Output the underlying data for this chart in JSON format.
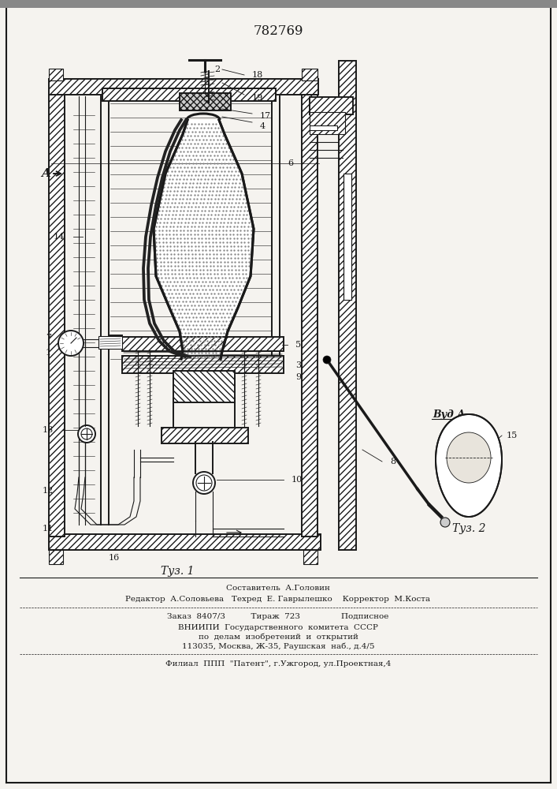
{
  "patent_number": "782769",
  "fig1_label": "Τуз. 1",
  "fig2_label": "Τуз. 2",
  "vid_a_label": "Вуд А",
  "label_A": "A",
  "bg_color": "#f5f3ef",
  "line_color": "#1a1a1a",
  "footer_line1": "Составитель  А.Головин",
  "footer_line2": "Редактор  А.Соловьева   Техред  Е. Гаврылешко    Корректор  М.Коста",
  "footer_line3": "Заказ  8407/3          Тираж  723                Подписное",
  "footer_line4": "ВНИИПИ  Государственного  комитета  СССР",
  "footer_line5": "по  делам  изобретений  и  открытий",
  "footer_line6": "113035, Москва, Ж-35, Раушская  наб., д.4/5",
  "footer_line7": "Филиал  ППП  \"Патент\", г.Ужгород, ул.Проектная,4"
}
